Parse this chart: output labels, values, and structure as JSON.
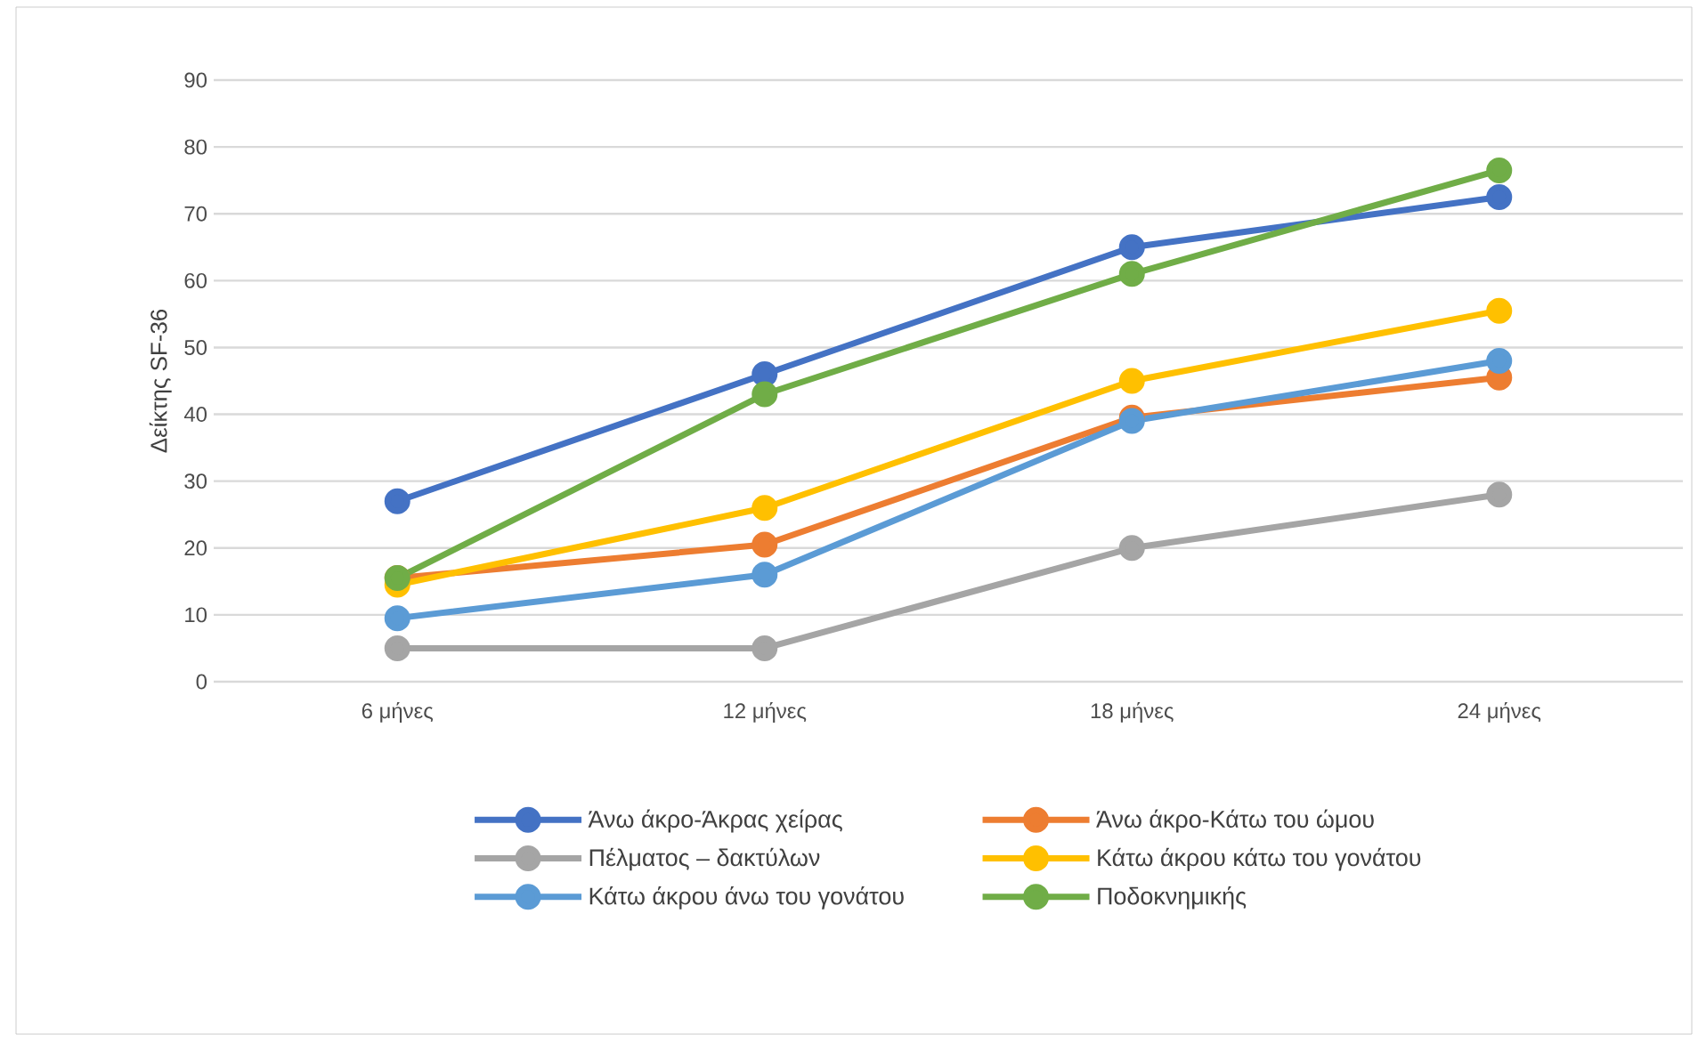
{
  "chart_data": {
    "type": "line",
    "ylabel": "Δείκτης SF-36",
    "categories": [
      "6 μήνες",
      "12 μήνες",
      "18 μήνες",
      "24 μήνες"
    ],
    "ylim": [
      0,
      90
    ],
    "yticks": [
      0,
      10,
      20,
      30,
      40,
      50,
      60,
      70,
      80,
      90
    ],
    "grid": "y",
    "legend": "bottom",
    "marker": "circle",
    "series": [
      {
        "name": "Άνω άκρο-Άκρας χείρας",
        "color": "#4472c4",
        "values": [
          27,
          46,
          65,
          72.5
        ]
      },
      {
        "name": "Άνω άκρο-Κάτω του ώμου",
        "color": "#ed7d31",
        "values": [
          15.5,
          20.5,
          39.5,
          45.5
        ]
      },
      {
        "name": "Πέλματος – δακτύλων",
        "color": "#a5a5a5",
        "values": [
          5,
          5,
          20,
          28
        ]
      },
      {
        "name": "Κάτω άκρου κάτω του γονάτου",
        "color": "#ffc000",
        "values": [
          14.5,
          26,
          45,
          55.5
        ]
      },
      {
        "name": "Κάτω άκρου άνω του γονάτου",
        "color": "#5b9bd5",
        "values": [
          9.5,
          16,
          39,
          48
        ]
      },
      {
        "name": "Ποδοκνημικής",
        "color": "#70ad47",
        "values": [
          15.5,
          43,
          61,
          76.5
        ]
      }
    ]
  }
}
